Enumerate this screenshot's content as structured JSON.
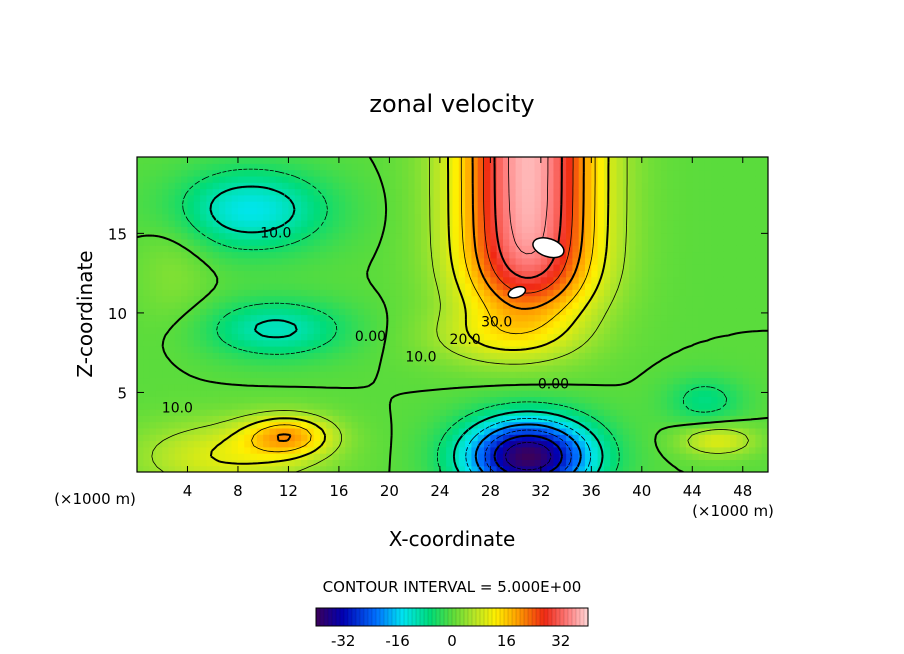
{
  "chart_data": {
    "type": "heatmap",
    "subtype": "filled-contour",
    "title": "zonal velocity",
    "xlabel": "X-coordinate",
    "ylabel": "Z-coordinate",
    "x_unit": "(×1000 m)",
    "x_unit_right": "(×1000 m)",
    "x_ticks": [
      4,
      8,
      12,
      16,
      20,
      24,
      28,
      32,
      36,
      40,
      44,
      48
    ],
    "y_ticks": [
      5,
      10,
      15
    ],
    "xlim": [
      0,
      50
    ],
    "ylim": [
      0,
      19.8
    ],
    "contour_interval_text": "CONTOUR INTERVAL = 5.000E+00",
    "contour_labels": [
      {
        "text": "10.0",
        "x": 11.0,
        "z": 15.0
      },
      {
        "text": "0.00",
        "x": 18.5,
        "z": 8.5
      },
      {
        "text": "10.0",
        "x": 22.5,
        "z": 7.2
      },
      {
        "text": "20.0",
        "x": 26.0,
        "z": 8.3
      },
      {
        "text": "30.0",
        "x": 28.5,
        "z": 9.4
      },
      {
        "text": "0.00",
        "x": 33.0,
        "z": 5.5
      },
      {
        "text": "10.0",
        "x": 3.2,
        "z": 4.0
      }
    ],
    "colorbar": {
      "ticks": [
        "-32",
        "-16",
        "0",
        "16",
        "32"
      ],
      "tick_values": [
        -32,
        -16,
        0,
        16,
        32
      ],
      "range": [
        -40,
        40
      ]
    },
    "field_features": [
      {
        "kind": "max",
        "x": 31,
        "z": 14,
        "value": 42
      },
      {
        "kind": "max",
        "x": 29,
        "z": 8,
        "value": 28
      },
      {
        "kind": "min",
        "x": 31,
        "z": 1,
        "value": -35
      },
      {
        "kind": "min",
        "x": 10,
        "z": 16,
        "value": -15
      },
      {
        "kind": "min",
        "x": 12,
        "z": 9,
        "value": -12
      },
      {
        "kind": "max",
        "x": 12,
        "z": 2,
        "value": 22
      },
      {
        "kind": "max",
        "x": 8,
        "z": 0.2,
        "value": 22
      },
      {
        "kind": "min",
        "x": 45,
        "z": 4.5,
        "value": -6
      }
    ]
  }
}
